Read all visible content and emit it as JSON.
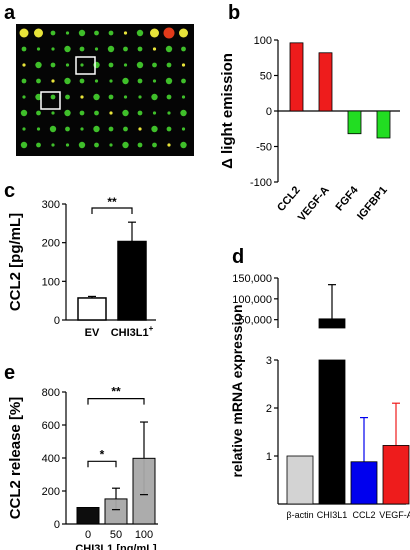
{
  "panels": {
    "a": "a",
    "b": "b",
    "c": "c",
    "d": "d",
    "e": "e"
  },
  "chart_data": [
    {
      "panel": "a",
      "type": "heatmap",
      "description_note": "",
      "colors": {
        "background": "#050505",
        "spot_green": "#3fbf2a",
        "spot_yellow": "#e8e43a",
        "spot_red": "#e23a1a",
        "highlight_box": "#ffffff"
      }
    },
    {
      "panel": "b",
      "type": "bar",
      "categories": [
        "CCL2",
        "VEGF-A",
        "FGF4",
        "IGFBP1"
      ],
      "values": [
        96,
        82,
        -32,
        -38
      ],
      "colors": [
        "#ee1c1c",
        "#ee1c1c",
        "#22dd22",
        "#22dd22"
      ],
      "ylabel": "Δ light emission",
      "ylim": [
        -100,
        100
      ],
      "yticks": [
        "-100",
        "-50",
        "0",
        "50",
        "100"
      ]
    },
    {
      "panel": "c",
      "type": "bar",
      "categories": [
        "EV",
        "CHI3L1"
      ],
      "category_superscripts": [
        "",
        "+"
      ],
      "values": [
        57,
        203
      ],
      "errors": [
        4,
        50
      ],
      "colors": [
        "#ffffff",
        "#000000"
      ],
      "ylabel": "CCL2 [pg/mL]",
      "ylim": [
        0,
        300
      ],
      "yticks": [
        "0",
        "100",
        "200",
        "300"
      ],
      "significance": [
        {
          "from": "EV",
          "to": "CHI3L1",
          "label": "**"
        }
      ]
    },
    {
      "panel": "d",
      "type": "bar",
      "categories": [
        "β-actin",
        "CHI3L1",
        "CCL2",
        "VEGF-A"
      ],
      "values": [
        1,
        52000,
        0.88,
        1.22
      ],
      "errors": [
        0,
        82000,
        0.92,
        0.88
      ],
      "colors": [
        "#d3d3d3",
        "#000000",
        "#0000ee",
        "#ee1c1c"
      ],
      "ylabel": "relative mRNA expression",
      "broken_axis": true,
      "lower_ylim": [
        0,
        3
      ],
      "upper_ylim": [
        30000,
        150000
      ],
      "lower_yticks": [
        "1",
        "2",
        "3"
      ],
      "upper_yticks": [
        "50,000",
        "100,000",
        "150,000"
      ]
    },
    {
      "panel": "e",
      "type": "bar",
      "categories": [
        "0",
        "50",
        "100"
      ],
      "values": [
        100,
        152,
        398
      ],
      "errors": [
        0,
        65,
        220
      ],
      "colors": [
        "#000000",
        "#a8a8a8",
        "#a8a8a8"
      ],
      "ylabel": "CCL2 release [%]",
      "xlabel": "CHI3L1 [ng/mL]",
      "ylim": [
        0,
        800
      ],
      "yticks": [
        "0",
        "200",
        "400",
        "600",
        "800"
      ],
      "significance": [
        {
          "from": "0",
          "to": "50",
          "label": "*"
        },
        {
          "from": "0",
          "to": "100",
          "label": "**"
        }
      ]
    }
  ]
}
